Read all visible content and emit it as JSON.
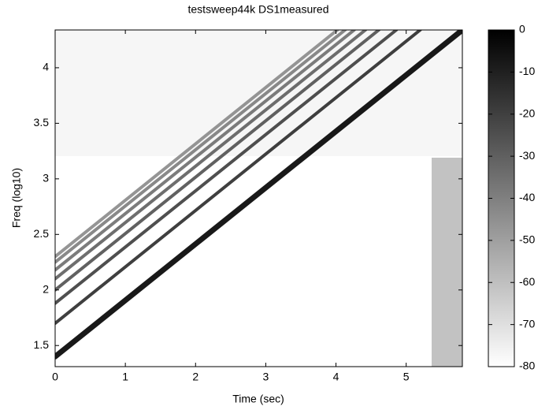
{
  "chart_data": {
    "type": "spectrogram",
    "title": "testsweep44k DS1measured",
    "x_label": "Time (sec)",
    "y_label": "Freq (log10)",
    "xlim": [
      0,
      5.8
    ],
    "xticks": [
      0,
      1,
      2,
      3,
      4,
      5
    ],
    "ylim": [
      1.31,
      4.34
    ],
    "yticks": [
      1.5,
      2,
      2.5,
      3,
      3.5,
      4
    ],
    "colorbar": {
      "lim": [
        -80,
        0
      ],
      "ticks": [
        0,
        -10,
        -20,
        -30,
        -40,
        -50,
        -60,
        -70,
        -80
      ],
      "colors": [
        "#ffffff",
        "#000000"
      ]
    },
    "series": [
      {
        "color": "#000000",
        "x": [
          0,
          5.8
        ],
        "values": [
          1.4,
          4.34
        ]
      },
      {
        "color": "#2a2a2a",
        "x": [
          0,
          5.2
        ],
        "values": [
          1.7,
          4.34
        ]
      },
      {
        "color": "#3c3c3c",
        "x": [
          0,
          4.86
        ],
        "values": [
          1.88,
          4.34
        ]
      },
      {
        "color": "#505050",
        "x": [
          0,
          4.61
        ],
        "values": [
          2.0,
          4.34
        ]
      },
      {
        "color": "#5e5e5e",
        "x": [
          0,
          4.42
        ],
        "values": [
          2.1,
          4.34
        ]
      },
      {
        "color": "#6e6e6e",
        "x": [
          0,
          4.26
        ],
        "values": [
          2.18,
          4.34
        ]
      },
      {
        "color": "#7c7c7c",
        "x": [
          0,
          4.13
        ],
        "values": [
          2.25,
          4.34
        ]
      },
      {
        "color": "#8a8a8a",
        "x": [
          0,
          4.02
        ],
        "values": [
          2.3,
          4.34
        ]
      }
    ]
  }
}
